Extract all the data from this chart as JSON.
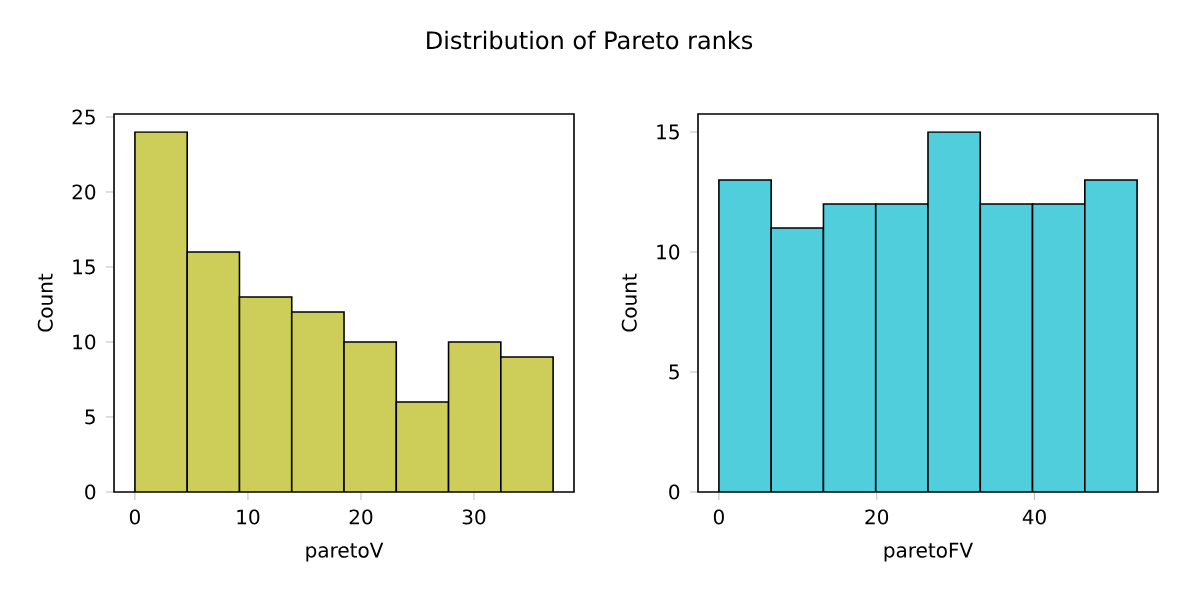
{
  "chart_data": [
    {
      "type": "histogram",
      "title": "Distribution of Pareto ranks",
      "xlabel": "paretoV",
      "ylabel": "Count",
      "bins": [
        0,
        4.625,
        9.25,
        13.875,
        18.5,
        23.125,
        27.75,
        32.375,
        37
      ],
      "values": [
        24,
        16,
        13,
        12,
        10,
        6,
        10,
        9
      ],
      "color": "#cdce59",
      "xlim": [
        -1.85,
        38.85
      ],
      "ylim": [
        0,
        25.2
      ],
      "xticks": [
        0,
        10,
        20,
        30
      ],
      "yticks": [
        0,
        5,
        10,
        15,
        20,
        25
      ],
      "grid": false
    },
    {
      "type": "histogram",
      "xlabel": "paretoFV",
      "ylabel": "Count",
      "bins": [
        0,
        6.625,
        13.25,
        19.875,
        26.5,
        33.125,
        39.75,
        46.375,
        53
      ],
      "values": [
        13,
        11,
        12,
        12,
        15,
        12,
        12,
        13
      ],
      "color": "#51cedb",
      "xlim": [
        -2.65,
        55.65
      ],
      "ylim": [
        0,
        15.75
      ],
      "xticks": [
        0,
        20,
        40
      ],
      "yticks": [
        0,
        5,
        10,
        15
      ],
      "grid": false
    }
  ]
}
